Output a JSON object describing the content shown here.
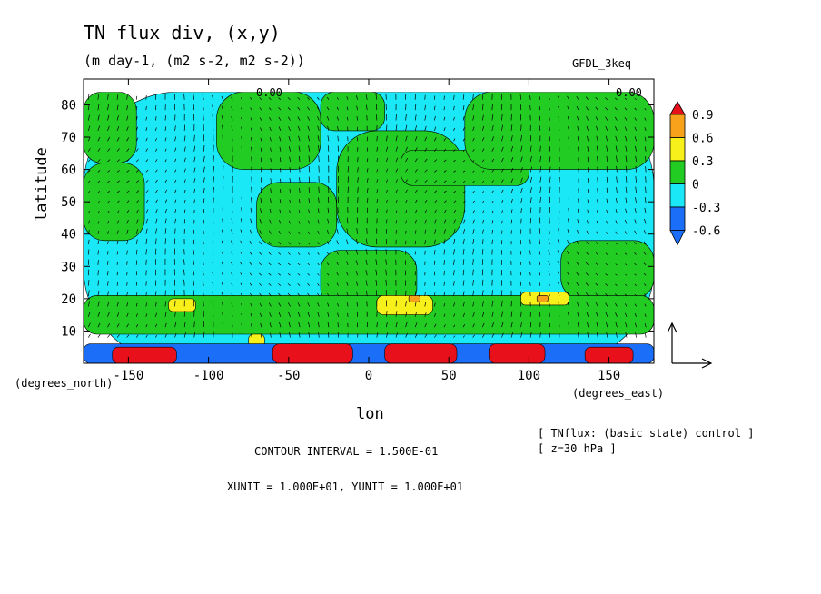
{
  "title": "TN flux div, (x,y)",
  "subtitle": "(m day-1, (m2 s-2, m2 s-2))",
  "model_label": "GFDL_3keq",
  "ylabel": "latitude",
  "xlabel": "lon",
  "y_units": "(degrees_north)",
  "x_units": "(degrees_east)",
  "contour_interval": "CONTOUR INTERVAL = 1.500E-01",
  "units_note": "XUNIT = 1.000E+01, YUNIT = 1.000E+01",
  "info": [
    "[ TNflux: (basic state) control ]",
    "[ z=30 hPa ]"
  ],
  "contour_marks": [
    "0.00",
    "0.00"
  ],
  "colors": {
    "c_0.9": "#e8111b",
    "c_0.6": "#f7a21a",
    "c_0.3": "#f7f01a",
    "c_0": "#22cc22",
    "c_-0.3": "#1ae8f7",
    "c_-0.6": "#1a6ef7"
  },
  "chart_data": {
    "type": "heatmap",
    "title": "TN flux div, (x,y)",
    "xlabel": "lon",
    "ylabel": "latitude",
    "xlim": [
      -178,
      178
    ],
    "ylim": [
      0,
      88
    ],
    "x_ticks": [
      -150,
      -100,
      -50,
      0,
      50,
      100,
      150
    ],
    "x_tick_labels": [
      "-150",
      "-100",
      "-50",
      "0",
      "50",
      "100",
      "150"
    ],
    "y_ticks": [
      10,
      20,
      30,
      40,
      50,
      60,
      70,
      80
    ],
    "y_tick_labels": [
      "10",
      "20",
      "30",
      "40",
      "50",
      "60",
      "70",
      "80"
    ],
    "colorbar": {
      "levels": [
        0.9,
        0.6,
        0.3,
        0,
        -0.3,
        -0.6
      ],
      "labels": [
        "0.9",
        "0.6",
        "0.3",
        "0",
        "-0.3",
        "-0.6"
      ]
    },
    "regions": [
      {
        "value": -0.3,
        "lon": [
          -178,
          178
        ],
        "lat": [
          0,
          84
        ]
      },
      {
        "value": 0,
        "lon": [
          -178,
          -140
        ],
        "lat": [
          38,
          62
        ]
      },
      {
        "value": 0,
        "lon": [
          -178,
          -145
        ],
        "lat": [
          62,
          84
        ]
      },
      {
        "value": 0,
        "lon": [
          -95,
          -30
        ],
        "lat": [
          60,
          84
        ]
      },
      {
        "value": 0,
        "lon": [
          -30,
          10
        ],
        "lat": [
          72,
          84
        ]
      },
      {
        "value": 0,
        "lon": [
          -70,
          -20
        ],
        "lat": [
          36,
          56
        ]
      },
      {
        "value": 0,
        "lon": [
          -20,
          60
        ],
        "lat": [
          36,
          72
        ]
      },
      {
        "value": 0,
        "lon": [
          20,
          100
        ],
        "lat": [
          55,
          66
        ]
      },
      {
        "value": 0,
        "lon": [
          60,
          178
        ],
        "lat": [
          60,
          84
        ]
      },
      {
        "value": 0,
        "lon": [
          -30,
          30
        ],
        "lat": [
          17,
          35
        ]
      },
      {
        "value": 0,
        "lon": [
          120,
          178
        ],
        "lat": [
          20,
          38
        ]
      },
      {
        "value": 0,
        "lon": [
          -178,
          178
        ],
        "lat": [
          9,
          21
        ]
      },
      {
        "value": 0.3,
        "lon": [
          -125,
          -108
        ],
        "lat": [
          16,
          20
        ]
      },
      {
        "value": 0.3,
        "lon": [
          5,
          40
        ],
        "lat": [
          15,
          21
        ]
      },
      {
        "value": 0.3,
        "lon": [
          95,
          125
        ],
        "lat": [
          18,
          22
        ]
      },
      {
        "value": 0.3,
        "lon": [
          -75,
          -65
        ],
        "lat": [
          5,
          9
        ]
      },
      {
        "value": 0.6,
        "lon": [
          105,
          112
        ],
        "lat": [
          19,
          21
        ]
      },
      {
        "value": 0.6,
        "lon": [
          25,
          32
        ],
        "lat": [
          19,
          21
        ]
      },
      {
        "value": -0.6,
        "lon": [
          -178,
          178
        ],
        "lat": [
          0,
          6
        ]
      },
      {
        "value": 0.9,
        "lon": [
          -160,
          -120
        ],
        "lat": [
          0,
          5
        ]
      },
      {
        "value": 0.9,
        "lon": [
          -60,
          -10
        ],
        "lat": [
          0,
          6
        ]
      },
      {
        "value": 0.9,
        "lon": [
          10,
          55
        ],
        "lat": [
          0,
          6
        ]
      },
      {
        "value": 0.9,
        "lon": [
          75,
          110
        ],
        "lat": [
          0,
          6
        ]
      },
      {
        "value": 0.9,
        "lon": [
          135,
          165
        ],
        "lat": [
          0,
          5
        ]
      }
    ]
  }
}
